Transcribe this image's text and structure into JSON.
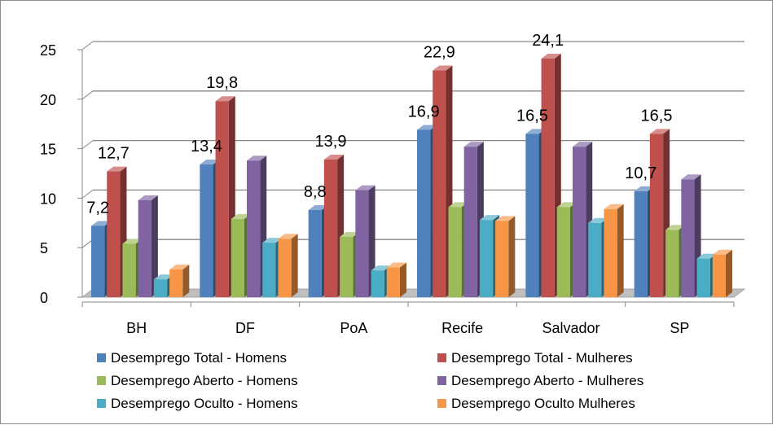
{
  "chart_data": {
    "type": "bar",
    "title": "",
    "xlabel": "",
    "ylabel": "",
    "ylim": [
      0,
      25
    ],
    "yticks": [
      0,
      5,
      10,
      15,
      20,
      25
    ],
    "grid": true,
    "legend_position": "bottom",
    "categories": [
      "BH",
      "DF",
      "PoA",
      "Recife",
      "Salvador",
      "SP"
    ],
    "series": [
      {
        "name": "Desemprego Total - Homens",
        "color": "#4f81bd",
        "values": [
          7.2,
          13.4,
          8.8,
          16.9,
          16.5,
          10.7
        ]
      },
      {
        "name": "Desemprego Total - Mulheres",
        "color": "#c0504d",
        "values": [
          12.7,
          19.8,
          13.9,
          22.9,
          24.1,
          16.5
        ]
      },
      {
        "name": "Desemprego Aberto - Homens",
        "color": "#9bbb59",
        "values": [
          5.4,
          7.9,
          6.1,
          9.1,
          9.1,
          6.8
        ]
      },
      {
        "name": "Desemprego Aberto - Mulheres",
        "color": "#8064a2",
        "values": [
          9.8,
          13.8,
          10.8,
          15.2,
          15.2,
          11.9
        ]
      },
      {
        "name": "Desemprego Oculto - Homens",
        "color": "#4bacc6",
        "values": [
          1.8,
          5.5,
          2.7,
          7.8,
          7.5,
          3.9
        ]
      },
      {
        "name": "Desemprego Oculto Mulheres",
        "color": "#f79646",
        "values": [
          2.8,
          5.9,
          3.0,
          7.7,
          8.9,
          4.3
        ]
      }
    ],
    "data_labels": [
      {
        "series": 0,
        "category": 0,
        "text": "7,2"
      },
      {
        "series": 1,
        "category": 0,
        "text": "12,7"
      },
      {
        "series": 0,
        "category": 1,
        "text": "13,4"
      },
      {
        "series": 1,
        "category": 1,
        "text": "19,8"
      },
      {
        "series": 0,
        "category": 2,
        "text": "8,8"
      },
      {
        "series": 1,
        "category": 2,
        "text": "13,9"
      },
      {
        "series": 0,
        "category": 3,
        "text": "16,9"
      },
      {
        "series": 1,
        "category": 3,
        "text": "22,9"
      },
      {
        "series": 0,
        "category": 4,
        "text": "16,5"
      },
      {
        "series": 1,
        "category": 4,
        "text": "24,1"
      },
      {
        "series": 0,
        "category": 5,
        "text": "10,7"
      },
      {
        "series": 1,
        "category": 5,
        "text": "16,5"
      }
    ]
  }
}
